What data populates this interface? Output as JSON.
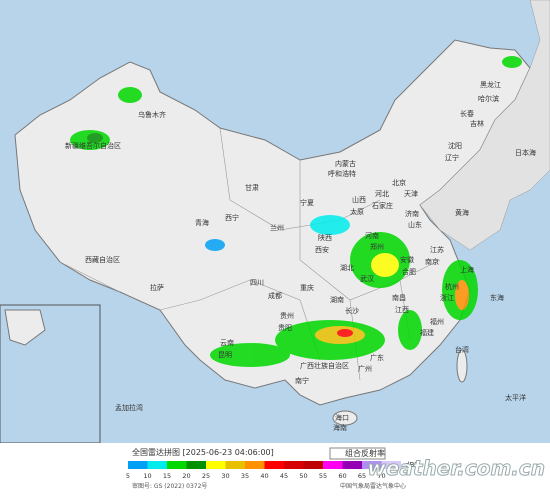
{
  "header": {
    "title": "全国雷达拼图 [2025-06-23 04:06:00]",
    "product": "组合反射率",
    "unit": "dBZ"
  },
  "legend": {
    "scale": [
      {
        "value": 5,
        "color": "#01a0f6"
      },
      {
        "value": 10,
        "color": "#00ecec"
      },
      {
        "value": 15,
        "color": "#00d800"
      },
      {
        "value": 20,
        "color": "#019000"
      },
      {
        "value": 25,
        "color": "#ffff00"
      },
      {
        "value": 30,
        "color": "#e7c000"
      },
      {
        "value": 35,
        "color": "#ff9000"
      },
      {
        "value": 40,
        "color": "#ff0000"
      },
      {
        "value": 45,
        "color": "#d60000"
      },
      {
        "value": 50,
        "color": "#c00000"
      },
      {
        "value": 55,
        "color": "#ff00f0"
      },
      {
        "value": 60,
        "color": "#9600b4"
      },
      {
        "value": 65,
        "color": "#ad90f0"
      },
      {
        "value": 70,
        "color": "#d8c8f8"
      }
    ]
  },
  "footer": {
    "approval": "审图号: GS (2022) 0372号",
    "agency": "中国气象局雷达气象中心",
    "watermark": "weather.com.cn"
  },
  "labels": [
    "黑龙江",
    "哈尔滨",
    "吉林",
    "长春",
    "辽宁",
    "沈阳",
    "内蒙古",
    "呼和浩特",
    "北京",
    "天津",
    "河北",
    "石家庄",
    "山西",
    "太原",
    "山东",
    "济南",
    "河南",
    "郑州",
    "江苏",
    "南京",
    "上海",
    "安徽",
    "合肥",
    "浙江",
    "杭州",
    "湖北",
    "武汉",
    "湖南",
    "长沙",
    "江西",
    "南昌",
    "福建",
    "福州",
    "台湾",
    "广东",
    "广州",
    "广西壮族自治区",
    "南宁",
    "海南",
    "海口",
    "贵州",
    "贵阳",
    "云南",
    "昆明",
    "四川",
    "成都",
    "重庆",
    "陕西",
    "西安",
    "甘肃",
    "兰州",
    "宁夏",
    "青海",
    "西宁",
    "西藏自治区",
    "拉萨",
    "新疆维吾尔自治区",
    "乌鲁木齐",
    "日本海",
    "黄海",
    "东海",
    "太平洋",
    "孟加拉湾"
  ]
}
